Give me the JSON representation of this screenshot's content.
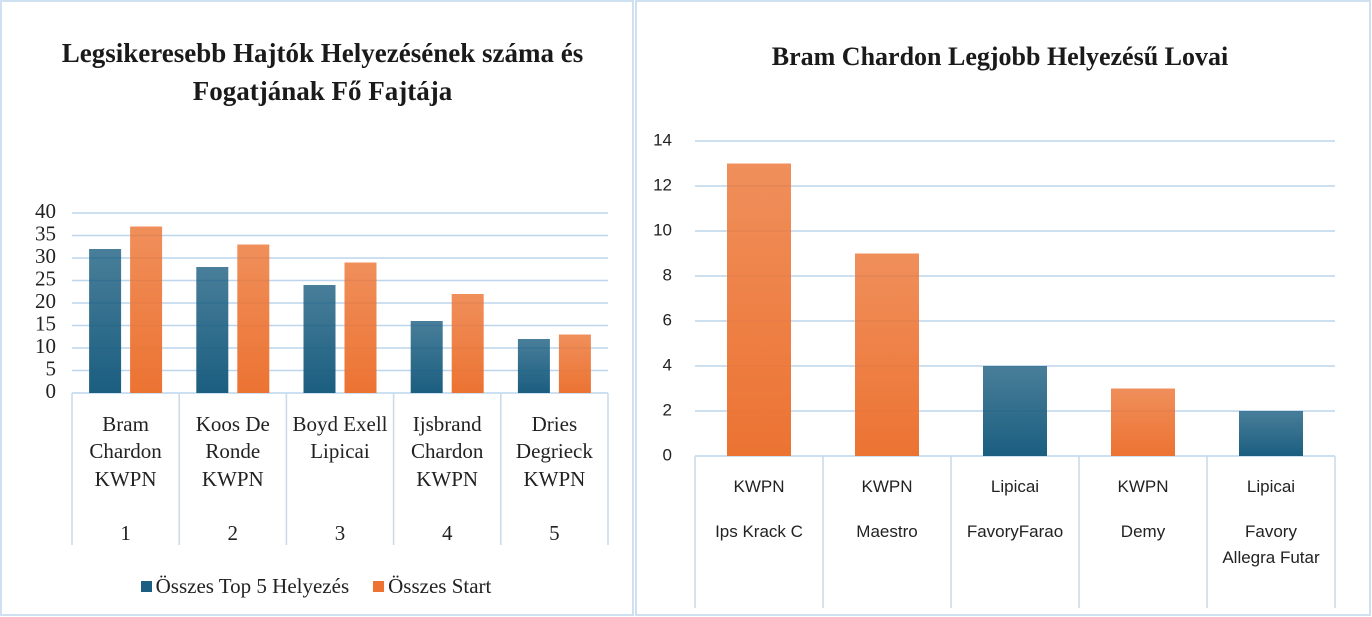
{
  "chart_data": [
    {
      "type": "bar",
      "title": "Legsikeresebb Hajtók Helyezésének száma és Fogatjának Fő Fajtája",
      "categories": [
        {
          "name": "Bram Chardon",
          "breed": "KWPN",
          "rank": "1"
        },
        {
          "name": "Koos De Ronde",
          "breed": "KWPN",
          "rank": "2"
        },
        {
          "name": "Boyd Exell",
          "breed": "Lipicai",
          "rank": "3"
        },
        {
          "name": "Ijsbrand Chardon",
          "breed": "KWPN",
          "rank": "4"
        },
        {
          "name": "Dries Degrieck",
          "breed": "KWPN",
          "rank": "5"
        }
      ],
      "series": [
        {
          "name": "Összes Top 5 Helyezés",
          "color": "#1b5e80",
          "values": [
            32,
            28,
            24,
            16,
            12
          ]
        },
        {
          "name": "Összes Start",
          "color": "#ec7332",
          "values": [
            37,
            33,
            29,
            22,
            13
          ]
        }
      ],
      "ylim": [
        0,
        40
      ],
      "yticks": [
        0,
        5,
        10,
        15,
        20,
        25,
        30,
        35,
        40
      ],
      "grid": true,
      "legend": "bottom"
    },
    {
      "type": "bar",
      "title": "Bram Chardon Legjobb Helyezésű Lovai",
      "categories": [
        {
          "breed": "KWPN",
          "name": "Ips Krack C"
        },
        {
          "breed": "KWPN",
          "name": "Maestro"
        },
        {
          "breed": "Lipicai",
          "name": "FavoryFarao"
        },
        {
          "breed": "KWPN",
          "name": "Demy"
        },
        {
          "breed": "Lipicai",
          "name": "Favory Allegra Futar"
        }
      ],
      "values": [
        13,
        9,
        4,
        3,
        2
      ],
      "colors": [
        "#ec7332",
        "#ec7332",
        "#1b5e80",
        "#ec7332",
        "#1b5e80"
      ],
      "ylim": [
        0,
        14
      ],
      "yticks": [
        0,
        2,
        4,
        6,
        8,
        10,
        12,
        14
      ],
      "grid": true
    }
  ]
}
